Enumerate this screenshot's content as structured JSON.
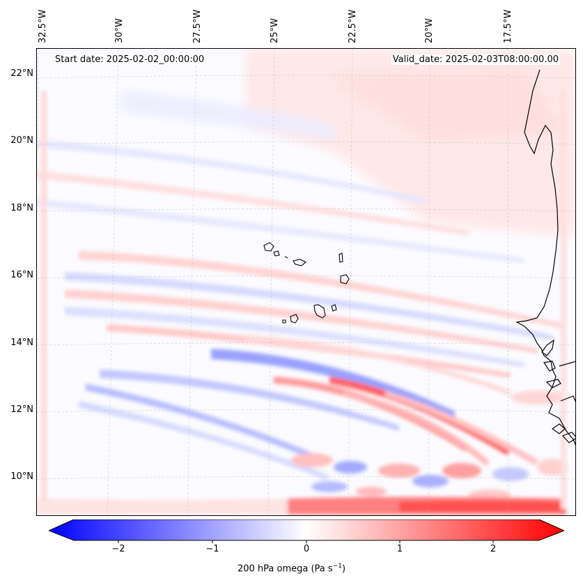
{
  "map": {
    "start_date": "Start date: 2025-02-02_00:00:00",
    "valid_date": "Valid_date: 2025-02-03T08:00:00.00",
    "lon_labels": [
      "32.5°W",
      "30°W",
      "27.5°W",
      "25°W",
      "22.5°W",
      "20°W",
      "17.5°W"
    ],
    "lat_labels": [
      "22°N",
      "20°N",
      "18°N",
      "16°N",
      "14°N",
      "12°N",
      "10°N"
    ]
  },
  "colorbar": {
    "ticks": [
      "−2",
      "−1",
      "0",
      "1",
      "2"
    ],
    "label_prefix": "200 hPa omega (Pa s",
    "label_exp": "−1",
    "label_suffix": ")",
    "min": -2.75,
    "max": 2.75,
    "colors": {
      "negative": "#0000ff",
      "zero": "#ffffff",
      "positive": "#ff0000"
    }
  }
}
